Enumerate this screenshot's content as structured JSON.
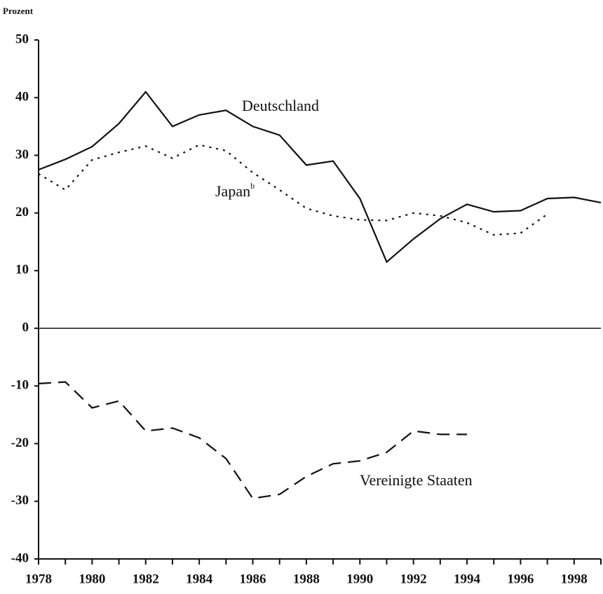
{
  "chart_data": {
    "type": "line",
    "y_label": "Prozent",
    "x": [
      1978,
      1979,
      1980,
      1981,
      1982,
      1983,
      1984,
      1985,
      1986,
      1987,
      1988,
      1989,
      1990,
      1991,
      1992,
      1993,
      1994,
      1995,
      1996,
      1997,
      1998,
      1999
    ],
    "series": [
      {
        "name": "Deutschland",
        "color": "#111111",
        "dash": "solid",
        "values": [
          27.5,
          29.3,
          31.5,
          35.5,
          41,
          35,
          37,
          37.8,
          35,
          33.5,
          28.3,
          29,
          22.5,
          11.5,
          15.5,
          19,
          21.5,
          20.2,
          20.4,
          22.5,
          22.7,
          21.8
        ]
      },
      {
        "name": "Japan",
        "note": "b",
        "color": "#111111",
        "dash": "dotted",
        "values": [
          26.8,
          24,
          29.2,
          30.5,
          31.6,
          29.5,
          31.8,
          30.8,
          27,
          24,
          20.8,
          19.5,
          18.8,
          18.7,
          20,
          19.5,
          18.3,
          16.2,
          16.5,
          19.8,
          null,
          null
        ]
      },
      {
        "name": "Vereinigte Staaten",
        "color": "#111111",
        "dash": "dashed",
        "values": [
          -9.6,
          -9.3,
          -13.8,
          -12.6,
          -17.8,
          -17.3,
          -19,
          -22.6,
          -29.5,
          -28.8,
          -25.7,
          -23.5,
          -23,
          -21.5,
          -17.8,
          -18.4,
          -18.4,
          null,
          null,
          null,
          null,
          null
        ]
      }
    ],
    "xlim": [
      1978,
      1999
    ],
    "xticks": [
      1978,
      1980,
      1982,
      1984,
      1986,
      1988,
      1990,
      1992,
      1994,
      1996,
      1998
    ],
    "xminor_ticks": [
      1979,
      1981,
      1983,
      1985,
      1987,
      1989,
      1991,
      1993,
      1995,
      1997,
      1999
    ],
    "ylim": [
      -40,
      50
    ],
    "yticks": [
      -40,
      -30,
      -20,
      -10,
      0,
      10,
      20,
      30,
      40,
      50
    ],
    "zero_line": true
  }
}
